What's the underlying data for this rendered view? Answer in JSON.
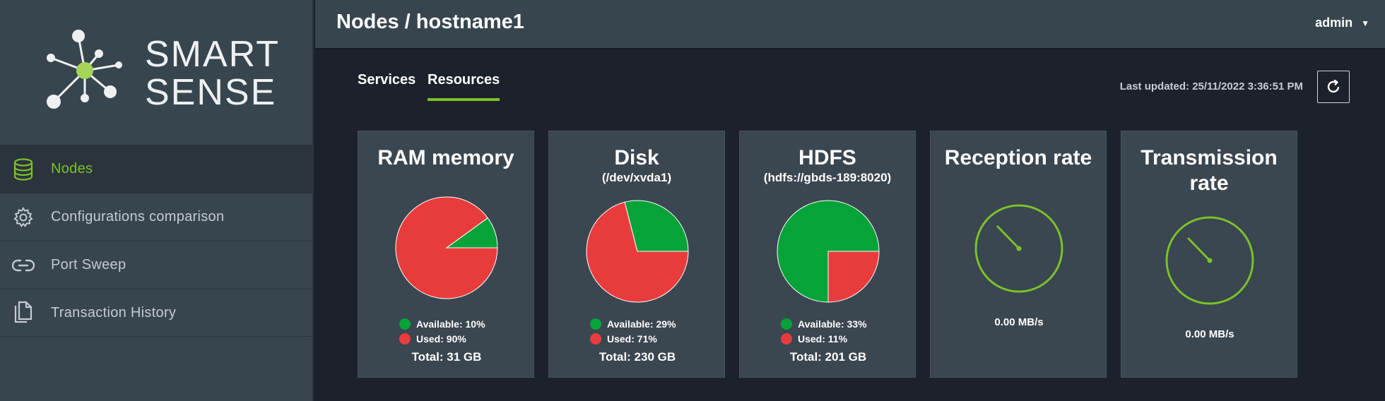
{
  "brand": {
    "line1": "SMART",
    "line2": "SENSE"
  },
  "sidebar": {
    "items": [
      {
        "label": "Nodes",
        "icon": "database-icon",
        "active": true
      },
      {
        "label": "Configurations comparison",
        "icon": "gear-icon",
        "active": false
      },
      {
        "label": "Port Sweep",
        "icon": "link-icon",
        "active": false
      },
      {
        "label": "Transaction History",
        "icon": "copy-icon",
        "active": false
      }
    ]
  },
  "header": {
    "breadcrumb": "Nodes / hostname1",
    "user": "admin"
  },
  "tabs": [
    {
      "label": "Services",
      "active": false
    },
    {
      "label": "Resources",
      "active": true
    }
  ],
  "last_updated": "Last updated: 25/11/2022 3:36:51 PM",
  "colors": {
    "accent": "#7cc12a",
    "available": "#06a338",
    "used": "#e83c3c"
  },
  "cards": {
    "ram": {
      "title": "RAM memory",
      "available": "Available: 10%",
      "used": "Used: 90%",
      "total": "Total: 31 GB"
    },
    "disk": {
      "title": "Disk",
      "subtitle": "(/dev/xvda1)",
      "available": "Available: 29%",
      "used": "Used: 71%",
      "total": "Total: 230 GB"
    },
    "hdfs": {
      "title": "HDFS",
      "subtitle": "(hdfs://gbds-189:8020)",
      "available": "Available: 33%",
      "used": "Used: 11%",
      "total": "Total: 201 GB"
    },
    "reception": {
      "title": "Reception rate",
      "value": "0.00 MB/s"
    },
    "transmission": {
      "title": "Transmission rate",
      "value": "0.00 MB/s"
    }
  },
  "chart_data": [
    {
      "type": "pie",
      "title": "RAM memory",
      "categories": [
        "Available",
        "Used"
      ],
      "values": [
        10,
        90
      ]
    },
    {
      "type": "pie",
      "title": "Disk",
      "categories": [
        "Available",
        "Used"
      ],
      "values": [
        29,
        71
      ]
    },
    {
      "type": "pie",
      "title": "HDFS",
      "categories": [
        "Available",
        "Used"
      ],
      "values": [
        33,
        11
      ]
    }
  ]
}
